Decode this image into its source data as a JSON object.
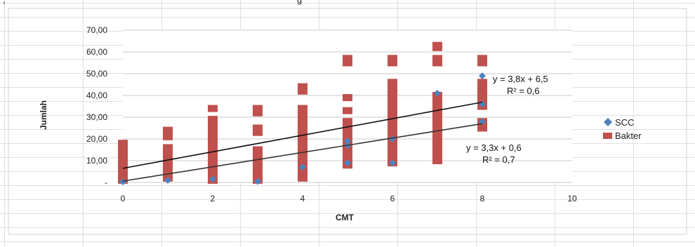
{
  "top_fragments": [
    ",",
    "g"
  ],
  "chart_data": {
    "type": "scatter",
    "xlabel": "CMT",
    "ylabel": "Jumlah",
    "xlim": [
      0,
      10
    ],
    "ylim": [
      0,
      70
    ],
    "x_ticks": [
      "0",
      "2",
      "4",
      "6",
      "8",
      "10"
    ],
    "y_ticks": [
      "-",
      "10,00",
      "20,00",
      "30,00",
      "40,00",
      "50,00",
      "60,00",
      "70,00"
    ],
    "grid": true,
    "legend_position": "right",
    "legend": [
      {
        "name": "SCC",
        "marker": "diamond",
        "color": "#4f81bd"
      },
      {
        "name": "Bakter",
        "marker": "square",
        "color": "#c0504d"
      }
    ],
    "series": [
      {
        "name": "Bakter",
        "color": "#c0504d",
        "marker": "square",
        "points": [
          [
            0,
            1
          ],
          [
            0,
            2
          ],
          [
            0,
            3
          ],
          [
            0,
            4
          ],
          [
            0,
            5
          ],
          [
            0,
            6
          ],
          [
            0,
            7
          ],
          [
            0,
            8
          ],
          [
            0,
            9
          ],
          [
            0,
            10
          ],
          [
            0,
            11
          ],
          [
            0,
            12
          ],
          [
            0,
            13
          ],
          [
            0,
            14
          ],
          [
            0,
            15
          ],
          [
            0,
            16
          ],
          [
            0,
            17
          ],
          [
            0,
            18
          ],
          [
            1,
            2
          ],
          [
            1,
            4
          ],
          [
            1,
            6
          ],
          [
            1,
            8
          ],
          [
            1,
            10
          ],
          [
            1,
            12
          ],
          [
            1,
            14
          ],
          [
            1,
            16
          ],
          [
            1,
            21
          ],
          [
            1,
            23
          ],
          [
            1,
            24
          ],
          [
            2,
            1
          ],
          [
            2,
            3
          ],
          [
            2,
            5
          ],
          [
            2,
            7
          ],
          [
            2,
            9
          ],
          [
            2,
            11
          ],
          [
            2,
            13
          ],
          [
            2,
            15
          ],
          [
            2,
            17
          ],
          [
            2,
            19
          ],
          [
            2,
            21
          ],
          [
            2,
            23
          ],
          [
            2,
            25
          ],
          [
            2,
            28
          ],
          [
            2,
            29
          ],
          [
            2,
            34
          ],
          [
            3,
            1
          ],
          [
            3,
            3
          ],
          [
            3,
            5
          ],
          [
            3,
            7
          ],
          [
            3,
            9
          ],
          [
            3,
            11
          ],
          [
            3,
            13
          ],
          [
            3,
            15
          ],
          [
            3,
            23
          ],
          [
            3,
            25
          ],
          [
            3,
            32
          ],
          [
            3,
            34
          ],
          [
            4,
            2
          ],
          [
            4,
            4
          ],
          [
            4,
            6
          ],
          [
            4,
            8
          ],
          [
            4,
            10
          ],
          [
            4,
            12
          ],
          [
            4,
            14
          ],
          [
            4,
            16
          ],
          [
            4,
            18
          ],
          [
            4,
            20
          ],
          [
            4,
            22
          ],
          [
            4,
            24
          ],
          [
            4,
            26
          ],
          [
            4,
            28
          ],
          [
            4,
            30
          ],
          [
            4,
            32
          ],
          [
            4,
            34
          ],
          [
            4,
            42
          ],
          [
            4,
            44
          ],
          [
            5,
            8
          ],
          [
            5,
            10
          ],
          [
            5,
            12
          ],
          [
            5,
            14
          ],
          [
            5,
            16
          ],
          [
            5,
            18
          ],
          [
            5,
            20
          ],
          [
            5,
            22
          ],
          [
            5,
            24
          ],
          [
            5,
            26
          ],
          [
            5,
            28
          ],
          [
            5,
            33
          ],
          [
            5,
            39
          ],
          [
            5,
            55
          ],
          [
            5,
            57
          ],
          [
            6,
            9
          ],
          [
            6,
            11
          ],
          [
            6,
            13
          ],
          [
            6,
            15
          ],
          [
            6,
            17
          ],
          [
            6,
            19
          ],
          [
            6,
            21
          ],
          [
            6,
            23
          ],
          [
            6,
            25
          ],
          [
            6,
            27
          ],
          [
            6,
            29
          ],
          [
            6,
            31
          ],
          [
            6,
            33
          ],
          [
            6,
            35
          ],
          [
            6,
            38
          ],
          [
            6,
            40
          ],
          [
            6,
            42
          ],
          [
            6,
            44
          ],
          [
            6,
            46
          ],
          [
            6,
            55
          ],
          [
            6,
            57
          ],
          [
            7,
            10
          ],
          [
            7,
            12
          ],
          [
            7,
            14
          ],
          [
            7,
            16
          ],
          [
            7,
            18
          ],
          [
            7,
            20
          ],
          [
            7,
            22
          ],
          [
            7,
            24
          ],
          [
            7,
            26
          ],
          [
            7,
            28
          ],
          [
            7,
            30
          ],
          [
            7,
            32
          ],
          [
            7,
            34
          ],
          [
            7,
            36
          ],
          [
            7,
            38
          ],
          [
            7,
            40
          ],
          [
            7,
            55
          ],
          [
            7,
            57
          ],
          [
            7,
            62
          ],
          [
            7,
            63
          ],
          [
            8,
            25
          ],
          [
            8,
            28
          ],
          [
            8,
            35
          ],
          [
            8,
            38
          ],
          [
            8,
            40
          ],
          [
            8,
            42
          ],
          [
            8,
            44
          ],
          [
            8,
            46
          ],
          [
            8,
            55
          ],
          [
            8,
            57
          ]
        ]
      },
      {
        "name": "SCC",
        "color": "#4f81bd",
        "marker": "diamond",
        "points": [
          [
            0,
            0.3
          ],
          [
            1,
            1
          ],
          [
            2,
            1.5
          ],
          [
            3,
            0.5
          ],
          [
            4,
            7
          ],
          [
            5,
            9
          ],
          [
            5,
            17
          ],
          [
            5,
            19
          ],
          [
            6,
            9
          ],
          [
            6,
            20
          ],
          [
            7,
            41
          ],
          [
            8,
            28
          ],
          [
            8,
            36
          ],
          [
            8,
            49
          ]
        ]
      }
    ],
    "trendlines": [
      {
        "series": "Bakter",
        "slope": 3.8,
        "intercept": 6.5,
        "x_range": [
          0,
          8
        ],
        "color": "#111111",
        "equation": "y = 3,8x + 6,5",
        "r2": "R² = 0,6"
      },
      {
        "series": "SCC",
        "slope": 3.3,
        "intercept": 0.6,
        "x_range": [
          0,
          8
        ],
        "color": "#333333",
        "equation": "y = 3,3x + 0,6",
        "r2": "R² = 0,7"
      }
    ]
  }
}
